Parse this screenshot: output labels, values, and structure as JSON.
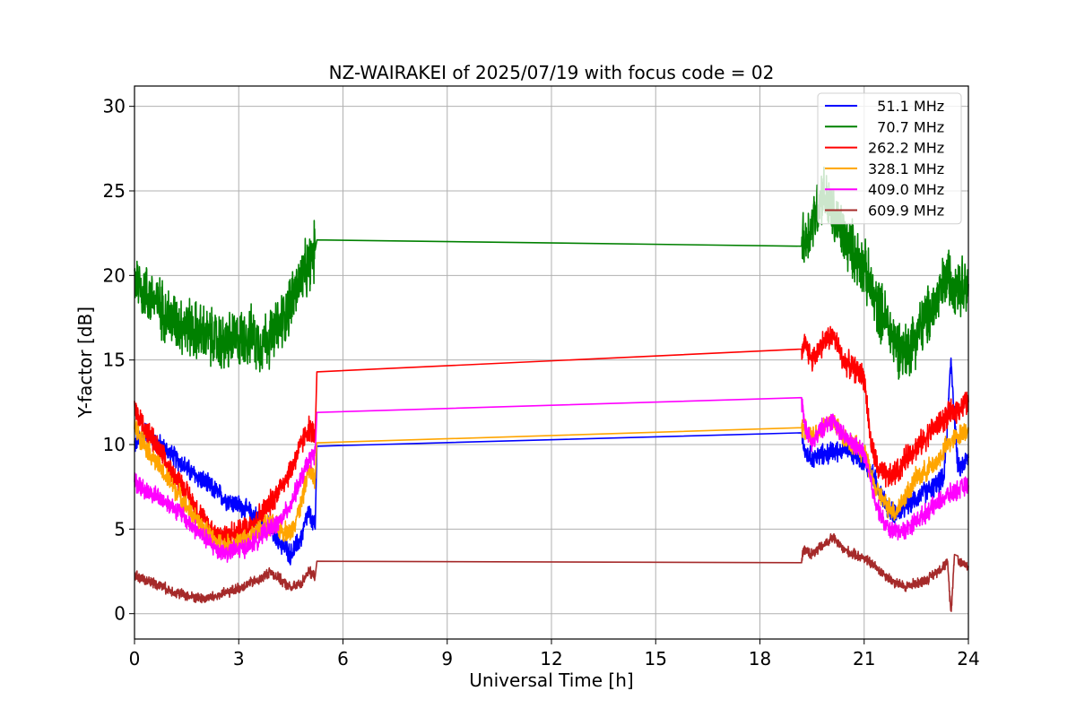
{
  "chart_data": {
    "type": "line",
    "title": "NZ-WAIRAKEI of 2025/07/19 with focus code = 02",
    "xlabel": "Universal Time [h]",
    "ylabel": "Y-factor [dB]",
    "xlim": [
      0,
      24
    ],
    "ylim": [
      -1.5,
      31.2
    ],
    "xticks": [
      0,
      3,
      6,
      9,
      12,
      15,
      18,
      21,
      24
    ],
    "yticks": [
      0,
      5,
      10,
      15,
      20,
      25,
      30
    ],
    "grid": true,
    "legend_position": "top-right",
    "series": [
      {
        "name": "  51.1 MHz",
        "color": "#0000ff",
        "noise": 0.5,
        "x": [
          0,
          0.3,
          0.6,
          1.0,
          1.3,
          1.6,
          2.0,
          2.3,
          2.6,
          3.0,
          3.3,
          3.6,
          3.9,
          4.2,
          4.5,
          4.8,
          5.0,
          5.2,
          5.25,
          19.2,
          19.3,
          19.5,
          20.0,
          20.5,
          21.0,
          21.3,
          21.6,
          21.8,
          22.0,
          22.3,
          22.6,
          23.0,
          23.3,
          23.5,
          23.7,
          24.0
        ],
        "y": [
          10.0,
          10.8,
          10.2,
          9.5,
          9.0,
          8.4,
          7.8,
          7.3,
          6.8,
          6.4,
          6.0,
          5.6,
          5.0,
          4.2,
          3.5,
          4.5,
          6.0,
          5.0,
          9.9,
          10.6,
          9.5,
          9.2,
          9.5,
          9.8,
          9.0,
          8.0,
          6.5,
          6.0,
          6.0,
          6.5,
          7.0,
          7.5,
          8.0,
          15.0,
          8.5,
          9.2
        ]
      },
      {
        "name": "  70.7 MHz",
        "color": "#008000",
        "noise": 1.4,
        "x": [
          0,
          0.3,
          0.6,
          1.0,
          1.5,
          2.0,
          2.5,
          3.0,
          3.3,
          3.6,
          4.0,
          4.3,
          4.6,
          5.0,
          5.2,
          5.25,
          19.2,
          19.3,
          19.5,
          19.8,
          20.1,
          20.5,
          21.0,
          21.3,
          21.6,
          21.9,
          22.2,
          22.5,
          22.8,
          23.1,
          23.4,
          23.7,
          24.0
        ],
        "y": [
          20.0,
          19.0,
          18.5,
          17.5,
          17.0,
          16.5,
          16.0,
          16.2,
          16.5,
          16.0,
          16.5,
          17.5,
          19.0,
          20.5,
          21.5,
          22.1,
          22.5,
          22.0,
          23.0,
          25.0,
          23.5,
          22.0,
          20.5,
          18.5,
          17.5,
          16.0,
          15.5,
          16.5,
          17.5,
          18.5,
          20.0,
          19.5,
          19.5
        ]
      },
      {
        "name": "262.2 MHz",
        "color": "#ff0000",
        "noise": 0.6,
        "x": [
          0,
          0.3,
          0.6,
          1.0,
          1.3,
          1.6,
          2.0,
          2.3,
          2.6,
          3.0,
          3.3,
          3.6,
          3.9,
          4.2,
          4.5,
          4.8,
          5.0,
          5.2,
          5.25,
          19.2,
          19.3,
          19.5,
          19.8,
          20.1,
          20.4,
          20.7,
          21.0,
          21.2,
          21.4,
          21.7,
          22.0,
          22.3,
          22.6,
          23.0,
          23.3,
          23.6,
          24.0
        ],
        "y": [
          12.0,
          11.0,
          10.0,
          8.5,
          7.8,
          6.8,
          5.5,
          4.8,
          4.6,
          4.8,
          5.2,
          5.8,
          6.5,
          7.5,
          8.5,
          10.0,
          11.0,
          10.5,
          14.3,
          15.1,
          16.0,
          15.0,
          16.0,
          16.5,
          15.0,
          14.5,
          14.0,
          10.0,
          8.5,
          8.0,
          8.5,
          9.5,
          10.0,
          11.0,
          11.5,
          12.0,
          12.5
        ]
      },
      {
        "name": "328.1 MHz",
        "color": "#ffa500",
        "noise": 0.5,
        "x": [
          0,
          0.3,
          0.6,
          1.0,
          1.3,
          1.6,
          2.0,
          2.3,
          2.6,
          3.0,
          3.3,
          3.6,
          3.9,
          4.2,
          4.5,
          4.8,
          5.0,
          5.2,
          5.25,
          19.2,
          19.3,
          19.5,
          19.8,
          20.1,
          20.4,
          20.7,
          21.0,
          21.3,
          21.6,
          21.9,
          22.2,
          22.5,
          22.8,
          23.1,
          23.4,
          23.7,
          24.0
        ],
        "y": [
          11.0,
          10.0,
          9.0,
          7.8,
          7.0,
          6.0,
          5.0,
          4.3,
          4.0,
          4.2,
          4.5,
          5.0,
          5.3,
          5.0,
          4.8,
          6.5,
          8.5,
          8.0,
          10.1,
          10.8,
          11.0,
          10.5,
          11.0,
          11.5,
          10.5,
          10.0,
          9.5,
          7.5,
          6.5,
          6.0,
          7.0,
          8.0,
          8.5,
          9.0,
          10.0,
          10.5,
          11.0
        ]
      },
      {
        "name": "409.0 MHz",
        "color": "#ff00ff",
        "noise": 0.45,
        "x": [
          0,
          0.3,
          0.6,
          1.0,
          1.3,
          1.6,
          2.0,
          2.3,
          2.6,
          3.0,
          3.3,
          3.6,
          3.9,
          4.2,
          4.5,
          4.8,
          5.0,
          5.2,
          5.25,
          19.2,
          19.3,
          19.5,
          19.8,
          20.1,
          20.4,
          20.7,
          21.0,
          21.3,
          21.6,
          21.9,
          22.2,
          22.5,
          22.8,
          23.1,
          23.4,
          23.7,
          24.0
        ],
        "y": [
          7.8,
          7.3,
          7.0,
          6.5,
          6.0,
          5.3,
          4.5,
          3.9,
          3.6,
          3.8,
          4.0,
          4.5,
          5.0,
          5.5,
          6.5,
          8.0,
          9.0,
          9.5,
          11.9,
          12.6,
          11.0,
          10.0,
          11.0,
          11.5,
          10.5,
          10.0,
          9.5,
          6.8,
          5.2,
          4.8,
          5.0,
          5.5,
          6.0,
          6.5,
          7.0,
          7.3,
          7.6
        ]
      },
      {
        "name": "609.9 MHz",
        "color": "#a52a2a",
        "noise": 0.25,
        "x": [
          0,
          0.3,
          0.6,
          1.0,
          1.3,
          1.6,
          2.0,
          2.3,
          2.6,
          3.0,
          3.3,
          3.6,
          3.9,
          4.2,
          4.5,
          4.8,
          5.0,
          5.2,
          5.25,
          19.2,
          19.3,
          19.5,
          19.8,
          20.1,
          20.4,
          20.7,
          21.0,
          21.3,
          21.6,
          21.9,
          22.2,
          22.5,
          22.8,
          23.1,
          23.4,
          23.5,
          23.6,
          23.7,
          24.0
        ],
        "y": [
          2.3,
          2.0,
          1.8,
          1.4,
          1.2,
          1.0,
          0.9,
          1.0,
          1.2,
          1.5,
          1.8,
          2.0,
          2.5,
          2.0,
          1.5,
          1.8,
          2.5,
          2.2,
          3.1,
          3.3,
          3.8,
          3.5,
          4.0,
          4.5,
          3.8,
          3.5,
          3.3,
          2.8,
          2.3,
          1.8,
          1.6,
          1.8,
          2.0,
          2.5,
          3.0,
          0.0,
          3.5,
          3.2,
          2.8
        ]
      }
    ]
  }
}
